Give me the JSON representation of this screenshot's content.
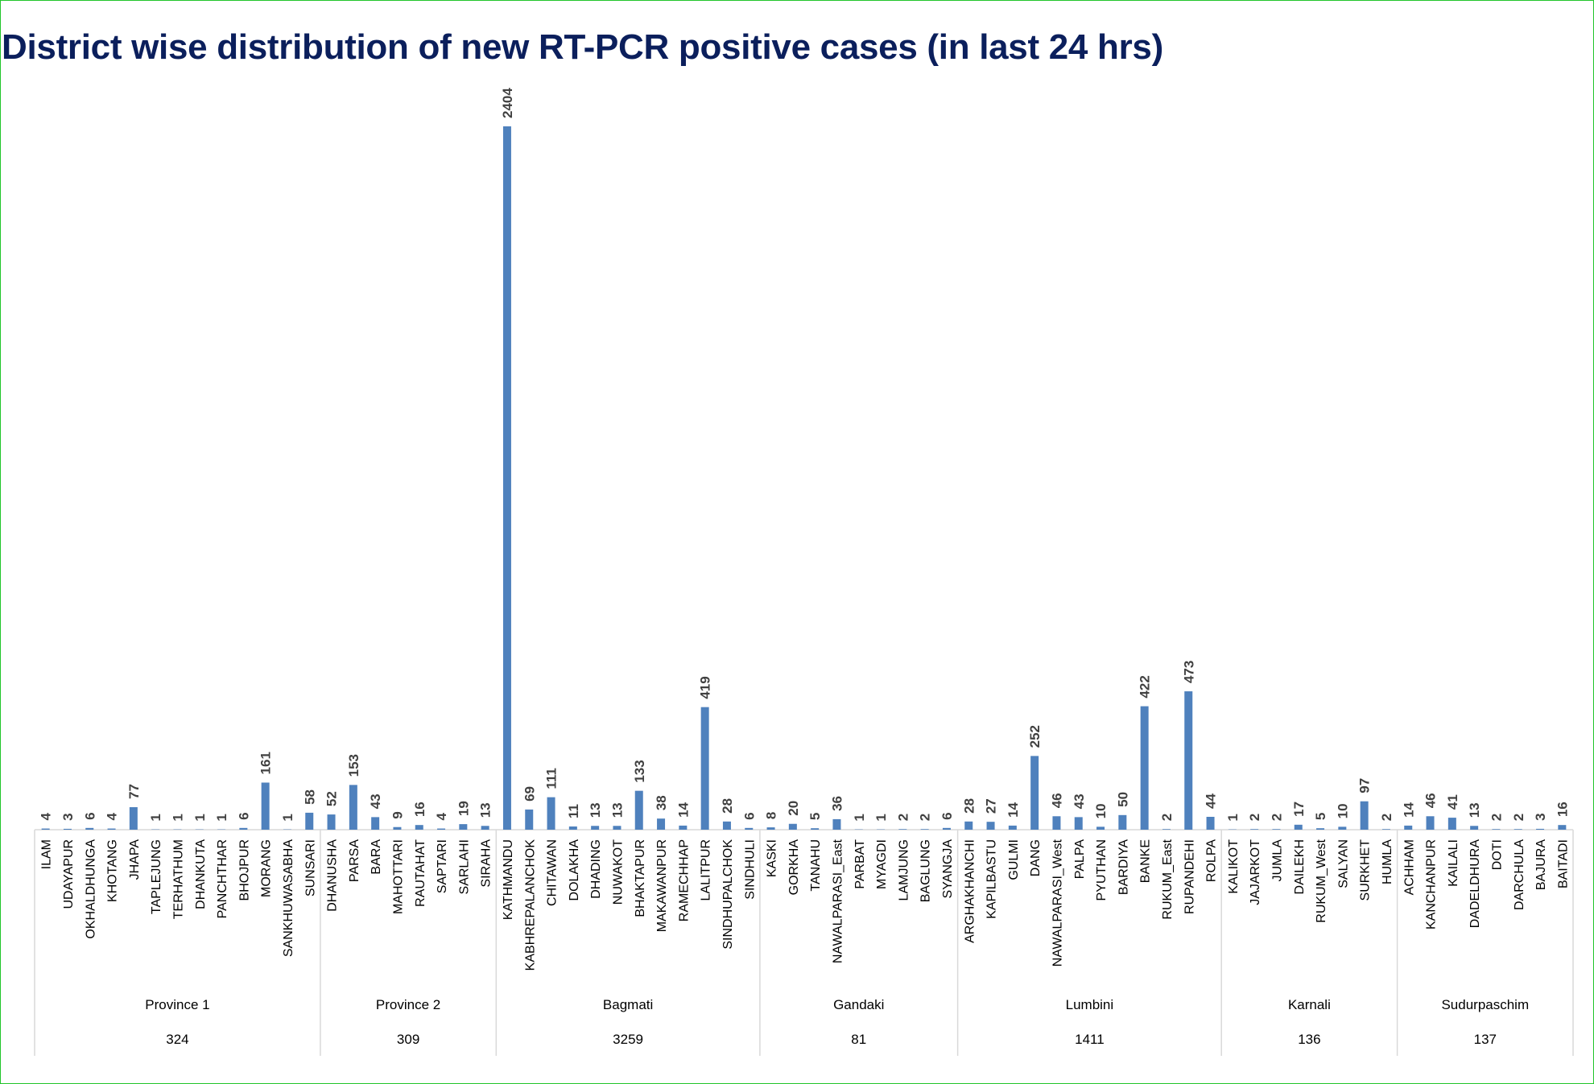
{
  "title": "District wise distribution of new RT-PCR positive cases (in last 24 hrs)",
  "colors": {
    "bar": "#4f81bd",
    "axis": "#d9d9d9",
    "title": "#0b1f5c",
    "label": "#404040"
  },
  "chart_data": {
    "type": "bar",
    "title": "District wise distribution of new RT-PCR positive cases (in last 24 hrs)",
    "xlabel": "",
    "ylabel": "",
    "ylim": [
      0,
      2404
    ],
    "grid": false,
    "legend": "none",
    "groups": [
      {
        "name": "Province 1",
        "total": "324",
        "categories": [
          "ILAM",
          "UDAYAPUR",
          "OKHALDHUNGA",
          "KHOTANG",
          "JHAPA",
          "TAPLEJUNG",
          "TERHATHUM",
          "DHANKUTA",
          "PANCHTHAR",
          "BHOJPUR",
          "MORANG",
          "SANKHUWASABHA",
          "SUNSARI"
        ],
        "values": [
          4,
          3,
          6,
          4,
          77,
          1,
          1,
          1,
          1,
          6,
          161,
          1,
          58
        ]
      },
      {
        "name": "Province 2",
        "total": "309",
        "categories": [
          "DHANUSHA",
          "PARSA",
          "BARA",
          "MAHOTTARI",
          "RAUTAHAT",
          "SAPTARI",
          "SARLAHI",
          "SIRAHA"
        ],
        "values": [
          52,
          153,
          43,
          9,
          16,
          4,
          19,
          13
        ]
      },
      {
        "name": "Bagmati",
        "total": "3259",
        "categories": [
          "KATHMANDU",
          "KABHREPALANCHOK",
          "CHITAWAN",
          "DOLAKHA",
          "DHADING",
          "NUWAKOT",
          "BHAKTAPUR",
          "MAKAWANPUR",
          "RAMECHHAP",
          "LALITPUR",
          "SINDHUPALCHOK",
          "SINDHULI"
        ],
        "values": [
          2404,
          69,
          111,
          11,
          13,
          13,
          133,
          38,
          14,
          419,
          28,
          6
        ]
      },
      {
        "name": "Gandaki",
        "total": "81",
        "categories": [
          "KASKI",
          "GORKHA",
          "TANAHU",
          "NAWALPARASI_East",
          "PARBAT",
          "MYAGDI",
          "LAMJUNG",
          "BAGLUNG",
          "SYANGJA"
        ],
        "values": [
          8,
          20,
          5,
          36,
          1,
          1,
          2,
          2,
          6
        ]
      },
      {
        "name": "Lumbini",
        "total": "1411",
        "categories": [
          "ARGHAKHANCHI",
          "KAPILBASTU",
          "GULMI",
          "DANG",
          "NAWALPARASI_West",
          "PALPA",
          "PYUTHAN",
          "BARDIYA",
          "BANKE",
          "RUKUM_East",
          "RUPANDEHI",
          "ROLPA"
        ],
        "values": [
          28,
          27,
          14,
          252,
          46,
          43,
          10,
          50,
          422,
          2,
          473,
          44
        ]
      },
      {
        "name": "Karnali",
        "total": "136",
        "categories": [
          "KALIKOT",
          "JAJARKOT",
          "JUMLA",
          "DAILEKH",
          "RUKUM_West",
          "SALYAN",
          "SURKHET",
          "HUMLA"
        ],
        "values": [
          1,
          2,
          2,
          17,
          5,
          10,
          97,
          2
        ]
      },
      {
        "name": "Sudurpaschim",
        "total": "137",
        "categories": [
          "ACHHAM",
          "KANCHANPUR",
          "KAILALI",
          "DADELDHURA",
          "DOTI",
          "DARCHULA",
          "BAJURA",
          "BAITADI"
        ],
        "values": [
          14,
          46,
          41,
          13,
          2,
          2,
          3,
          16
        ]
      }
    ]
  }
}
